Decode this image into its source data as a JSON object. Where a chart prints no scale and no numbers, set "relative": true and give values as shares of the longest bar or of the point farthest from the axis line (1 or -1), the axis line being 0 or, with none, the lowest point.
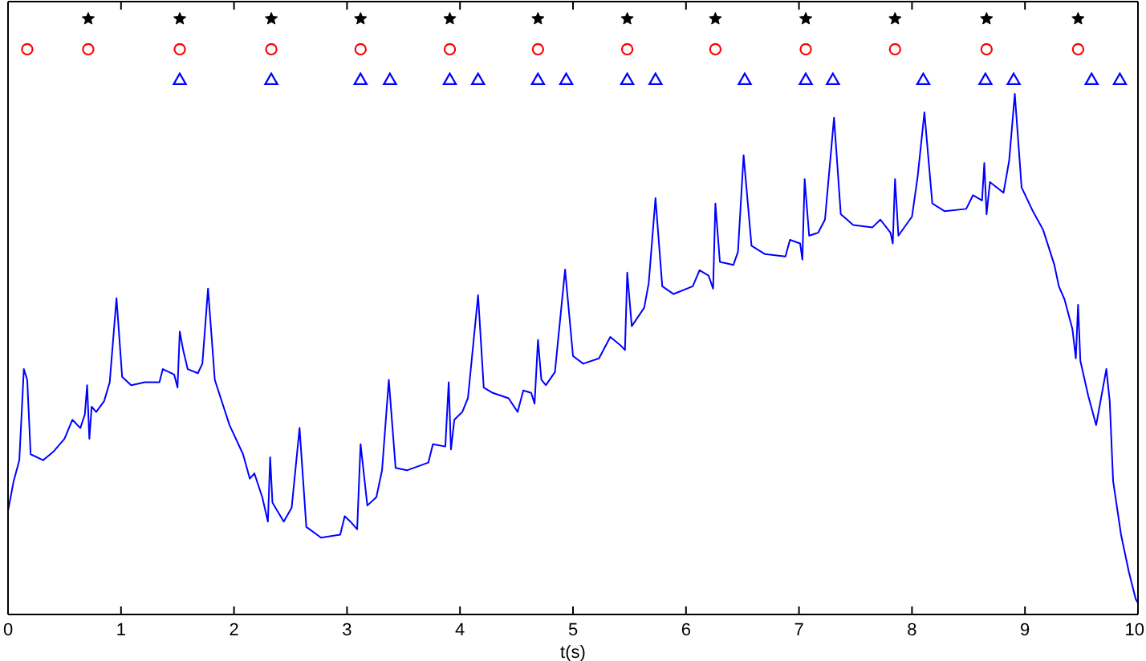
{
  "chart_data": {
    "type": "line",
    "relative": true,
    "xlabel": "t(s)",
    "xlim": [
      0,
      10
    ],
    "xticks": [
      0,
      1,
      2,
      3,
      4,
      5,
      6,
      7,
      8,
      9,
      10
    ],
    "line_style": "solid",
    "series": [
      {
        "color": "#0000ff",
        "marker": "none",
        "x": [
          0,
          0.05,
          0.1,
          0.14,
          0.17,
          0.2,
          0.31,
          0.4,
          0.5,
          0.57,
          0.64,
          0.68,
          0.7,
          0.72,
          0.74,
          0.78,
          0.85,
          0.9,
          0.96,
          1.01,
          1.09,
          1.21,
          1.34,
          1.37,
          1.47,
          1.5,
          1.52,
          1.55,
          1.59,
          1.68,
          1.72,
          1.77,
          1.83,
          1.96,
          2.08,
          2.14,
          2.18,
          2.25,
          2.3,
          2.32,
          2.34,
          2.44,
          2.51,
          2.58,
          2.64,
          2.77,
          2.94,
          2.98,
          3.03,
          3.09,
          3.12,
          3.18,
          3.26,
          3.31,
          3.37,
          3.43,
          3.53,
          3.72,
          3.76,
          3.87,
          3.9,
          3.92,
          3.95,
          4.02,
          4.07,
          4.16,
          4.21,
          4.29,
          4.43,
          4.51,
          4.56,
          4.63,
          4.66,
          4.69,
          4.72,
          4.76,
          4.84,
          4.93,
          5.0,
          5.09,
          5.23,
          5.33,
          5.42,
          5.46,
          5.48,
          5.52,
          5.63,
          5.67,
          5.73,
          5.79,
          5.89,
          6.06,
          6.12,
          6.2,
          6.24,
          6.26,
          6.3,
          6.42,
          6.46,
          6.51,
          6.58,
          6.7,
          6.88,
          6.92,
          7.01,
          7.03,
          7.05,
          7.09,
          7.17,
          7.23,
          7.31,
          7.37,
          7.48,
          7.65,
          7.72,
          7.81,
          7.83,
          7.85,
          7.88,
          8.0,
          8.05,
          8.11,
          8.18,
          8.29,
          8.48,
          8.54,
          8.62,
          8.64,
          8.66,
          8.69,
          8.81,
          8.86,
          8.91,
          8.97,
          9.07,
          9.16,
          9.26,
          9.3,
          9.35,
          9.42,
          9.45,
          9.47,
          9.49,
          9.56,
          9.63,
          9.72,
          9.75,
          9.78,
          9.85,
          9.92,
          9.98,
          10.0
        ],
        "values": [
          0.174,
          0.224,
          0.259,
          0.412,
          0.394,
          0.269,
          0.259,
          0.273,
          0.295,
          0.327,
          0.313,
          0.336,
          0.385,
          0.295,
          0.349,
          0.34,
          0.358,
          0.39,
          0.531,
          0.399,
          0.385,
          0.39,
          0.39,
          0.412,
          0.403,
          0.381,
          0.475,
          0.444,
          0.412,
          0.405,
          0.421,
          0.547,
          0.394,
          0.318,
          0.269,
          0.228,
          0.237,
          0.197,
          0.156,
          0.264,
          0.188,
          0.156,
          0.179,
          0.313,
          0.147,
          0.129,
          0.134,
          0.165,
          0.156,
          0.143,
          0.286,
          0.183,
          0.197,
          0.242,
          0.394,
          0.246,
          0.242,
          0.255,
          0.286,
          0.282,
          0.39,
          0.277,
          0.327,
          0.34,
          0.363,
          0.536,
          0.381,
          0.372,
          0.363,
          0.34,
          0.376,
          0.372,
          0.354,
          0.461,
          0.394,
          0.385,
          0.407,
          0.579,
          0.434,
          0.421,
          0.43,
          0.466,
          0.452,
          0.444,
          0.574,
          0.484,
          0.515,
          0.556,
          0.699,
          0.551,
          0.538,
          0.551,
          0.578,
          0.569,
          0.547,
          0.69,
          0.592,
          0.587,
          0.609,
          0.771,
          0.619,
          0.605,
          0.601,
          0.629,
          0.623,
          0.596,
          0.731,
          0.636,
          0.641,
          0.663,
          0.834,
          0.672,
          0.654,
          0.65,
          0.663,
          0.641,
          0.623,
          0.731,
          0.636,
          0.668,
          0.735,
          0.843,
          0.69,
          0.677,
          0.681,
          0.704,
          0.695,
          0.758,
          0.672,
          0.726,
          0.708,
          0.762,
          0.874,
          0.717,
          0.677,
          0.646,
          0.587,
          0.551,
          0.529,
          0.479,
          0.43,
          0.52,
          0.426,
          0.367,
          0.318,
          0.412,
          0.358,
          0.224,
          0.134,
          0.071,
          0.026,
          0.019
        ]
      },
      {
        "type": "scatter",
        "color": "#000000",
        "marker": "star",
        "x": [
          0.71,
          1.52,
          2.33,
          3.12,
          3.91,
          4.69,
          5.48,
          6.26,
          7.06,
          7.85,
          8.66,
          9.47
        ],
        "values": [
          1,
          1,
          1,
          1,
          1,
          1,
          1,
          1,
          1,
          1,
          1,
          1
        ]
      },
      {
        "type": "scatter",
        "color": "#ff0000",
        "marker": "circle",
        "x": [
          0.17,
          0.71,
          1.52,
          2.33,
          3.12,
          3.91,
          4.69,
          5.48,
          6.26,
          7.06,
          7.85,
          8.66,
          9.47
        ],
        "values": [
          0.949,
          0.949,
          0.949,
          0.949,
          0.949,
          0.949,
          0.949,
          0.949,
          0.949,
          0.949,
          0.949,
          0.949,
          0.949
        ]
      },
      {
        "type": "scatter",
        "color": "#0000ff",
        "marker": "triangle",
        "x": [
          1.52,
          2.33,
          3.12,
          3.38,
          3.91,
          4.16,
          4.69,
          4.94,
          5.48,
          5.73,
          6.52,
          7.06,
          7.3,
          8.1,
          8.65,
          8.9,
          9.59,
          9.84
        ],
        "values": [
          0.898,
          0.898,
          0.898,
          0.898,
          0.898,
          0.898,
          0.898,
          0.898,
          0.898,
          0.898,
          0.898,
          0.898,
          0.898,
          0.898,
          0.898,
          0.898,
          0.898,
          0.898
        ]
      }
    ]
  }
}
